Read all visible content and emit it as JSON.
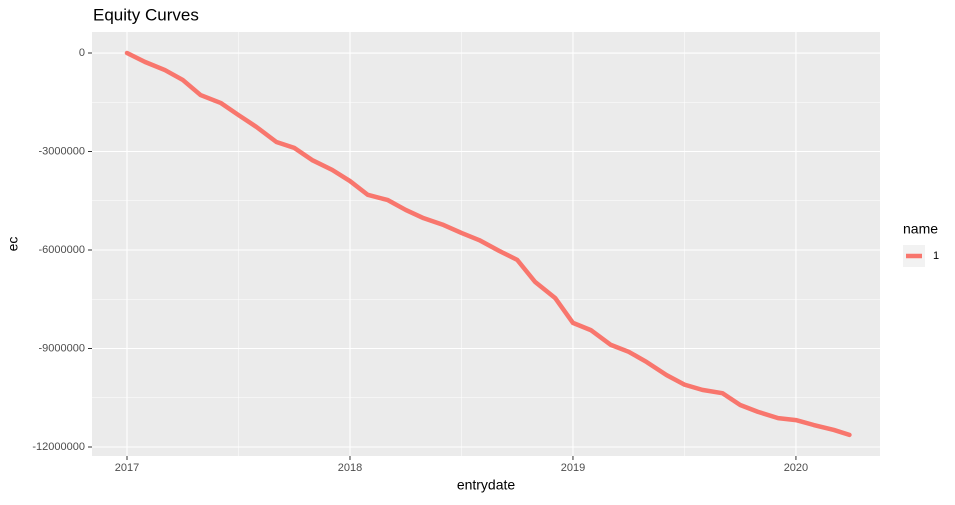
{
  "chart_data": {
    "type": "line",
    "title": "Equity Curves",
    "x_label": "entrydate",
    "y_label": "ec",
    "legend_title": "name",
    "legend_position": "right",
    "grid": true,
    "xlim": [
      2016.843,
      2020.377
    ],
    "xticks": [
      2017,
      2018,
      2019,
      2020
    ],
    "ylim": [
      -12274000,
      640000
    ],
    "yticks": [
      0,
      -3000000,
      -6000000,
      -9000000,
      -12000000
    ],
    "x": [
      2017.0,
      2017.08,
      2017.17,
      2017.25,
      2017.33,
      2017.42,
      2017.5,
      2017.58,
      2017.67,
      2017.75,
      2017.83,
      2017.92,
      2018.0,
      2018.08,
      2018.17,
      2018.25,
      2018.33,
      2018.42,
      2018.5,
      2018.58,
      2018.67,
      2018.75,
      2018.83,
      2018.92,
      2019.0,
      2019.08,
      2019.17,
      2019.25,
      2019.33,
      2019.42,
      2019.5,
      2019.58,
      2019.67,
      2019.75,
      2019.83,
      2019.92,
      2020.0,
      2020.08,
      2020.17,
      2020.24
    ],
    "series": [
      {
        "name": "1",
        "color": "#F8766D",
        "values": [
          0,
          -270000,
          -520000,
          -820000,
          -1280000,
          -1520000,
          -1890000,
          -2250000,
          -2710000,
          -2890000,
          -3260000,
          -3560000,
          -3900000,
          -4320000,
          -4480000,
          -4780000,
          -5030000,
          -5240000,
          -5480000,
          -5700000,
          -6030000,
          -6300000,
          -6970000,
          -7460000,
          -8220000,
          -8440000,
          -8890000,
          -9100000,
          -9410000,
          -9810000,
          -10100000,
          -10260000,
          -10360000,
          -10720000,
          -10930000,
          -11120000,
          -11180000,
          -11330000,
          -11480000,
          -11630000
        ]
      }
    ]
  }
}
